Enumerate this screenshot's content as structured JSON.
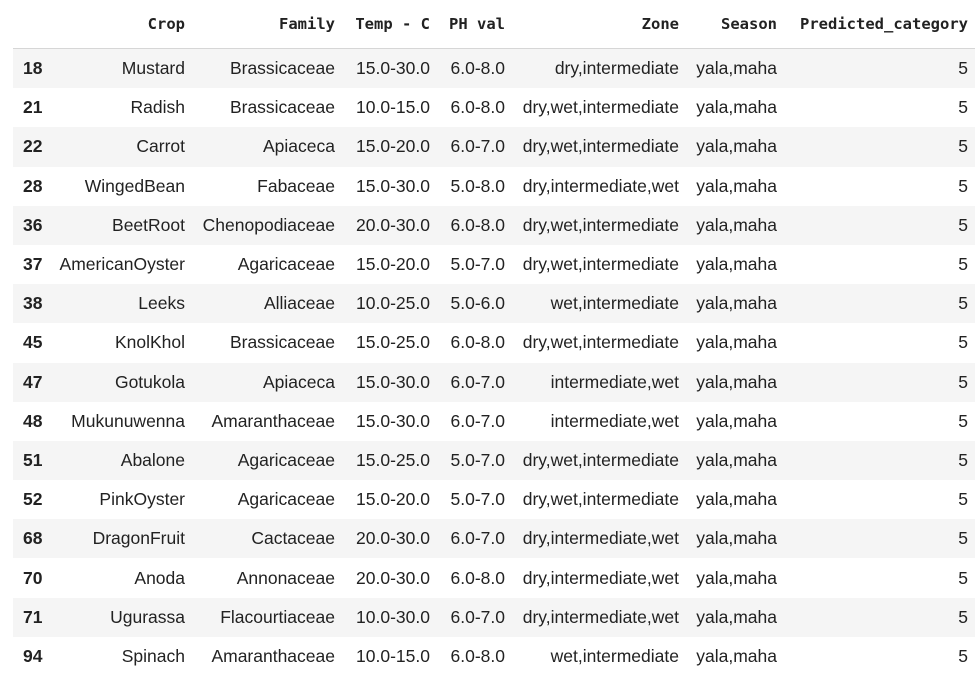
{
  "table": {
    "columns": [
      "",
      "Crop",
      "Family",
      "Temp - C",
      "PH val",
      "Zone",
      "Season",
      "Predicted_category"
    ],
    "rows": [
      {
        "index": "18",
        "crop": "Mustard",
        "family": "Brassicaceae",
        "temp": "15.0-30.0",
        "ph": "6.0-8.0",
        "zone": "dry,intermediate",
        "season": "yala,maha",
        "predicted": "5"
      },
      {
        "index": "21",
        "crop": "Radish",
        "family": "Brassicaceae",
        "temp": "10.0-15.0",
        "ph": "6.0-8.0",
        "zone": "dry,wet,intermediate",
        "season": "yala,maha",
        "predicted": "5"
      },
      {
        "index": "22",
        "crop": "Carrot",
        "family": "Apiaceca",
        "temp": "15.0-20.0",
        "ph": "6.0-7.0",
        "zone": "dry,wet,intermediate",
        "season": "yala,maha",
        "predicted": "5"
      },
      {
        "index": "28",
        "crop": "WingedBean",
        "family": "Fabaceae",
        "temp": "15.0-30.0",
        "ph": "5.0-8.0",
        "zone": "dry,intermediate,wet",
        "season": "yala,maha",
        "predicted": "5"
      },
      {
        "index": "36",
        "crop": "BeetRoot",
        "family": "Chenopodiaceae",
        "temp": "20.0-30.0",
        "ph": "6.0-8.0",
        "zone": "dry,wet,intermediate",
        "season": "yala,maha",
        "predicted": "5"
      },
      {
        "index": "37",
        "crop": "AmericanOyster",
        "family": "Agaricaceae",
        "temp": "15.0-20.0",
        "ph": "5.0-7.0",
        "zone": "dry,wet,intermediate",
        "season": "yala,maha",
        "predicted": "5"
      },
      {
        "index": "38",
        "crop": "Leeks",
        "family": "Alliaceae",
        "temp": "10.0-25.0",
        "ph": "5.0-6.0",
        "zone": "wet,intermediate",
        "season": "yala,maha",
        "predicted": "5"
      },
      {
        "index": "45",
        "crop": "KnolKhol",
        "family": "Brassicaceae",
        "temp": "15.0-25.0",
        "ph": "6.0-8.0",
        "zone": "dry,wet,intermediate",
        "season": "yala,maha",
        "predicted": "5"
      },
      {
        "index": "47",
        "crop": "Gotukola",
        "family": "Apiaceca",
        "temp": "15.0-30.0",
        "ph": "6.0-7.0",
        "zone": "intermediate,wet",
        "season": "yala,maha",
        "predicted": "5"
      },
      {
        "index": "48",
        "crop": "Mukunuwenna",
        "family": "Amaranthaceae",
        "temp": "15.0-30.0",
        "ph": "6.0-7.0",
        "zone": "intermediate,wet",
        "season": "yala,maha",
        "predicted": "5"
      },
      {
        "index": "51",
        "crop": "Abalone",
        "family": "Agaricaceae",
        "temp": "15.0-25.0",
        "ph": "5.0-7.0",
        "zone": "dry,wet,intermediate",
        "season": "yala,maha",
        "predicted": "5"
      },
      {
        "index": "52",
        "crop": "PinkOyster",
        "family": "Agaricaceae",
        "temp": "15.0-20.0",
        "ph": "5.0-7.0",
        "zone": "dry,wet,intermediate",
        "season": "yala,maha",
        "predicted": "5"
      },
      {
        "index": "68",
        "crop": "DragonFruit",
        "family": "Cactaceae",
        "temp": "20.0-30.0",
        "ph": "6.0-7.0",
        "zone": "dry,intermediate,wet",
        "season": "yala,maha",
        "predicted": "5"
      },
      {
        "index": "70",
        "crop": "Anoda",
        "family": "Annonaceae",
        "temp": "20.0-30.0",
        "ph": "6.0-8.0",
        "zone": "dry,intermediate,wet",
        "season": "yala,maha",
        "predicted": "5"
      },
      {
        "index": "71",
        "crop": "Ugurassa",
        "family": "Flacourtiaceae",
        "temp": "10.0-30.0",
        "ph": "6.0-7.0",
        "zone": "dry,intermediate,wet",
        "season": "yala,maha",
        "predicted": "5"
      },
      {
        "index": "94",
        "crop": "Spinach",
        "family": "Amaranthaceae",
        "temp": "10.0-15.0",
        "ph": "6.0-8.0",
        "zone": "wet,intermediate",
        "season": "yala,maha",
        "predicted": "5"
      }
    ]
  }
}
